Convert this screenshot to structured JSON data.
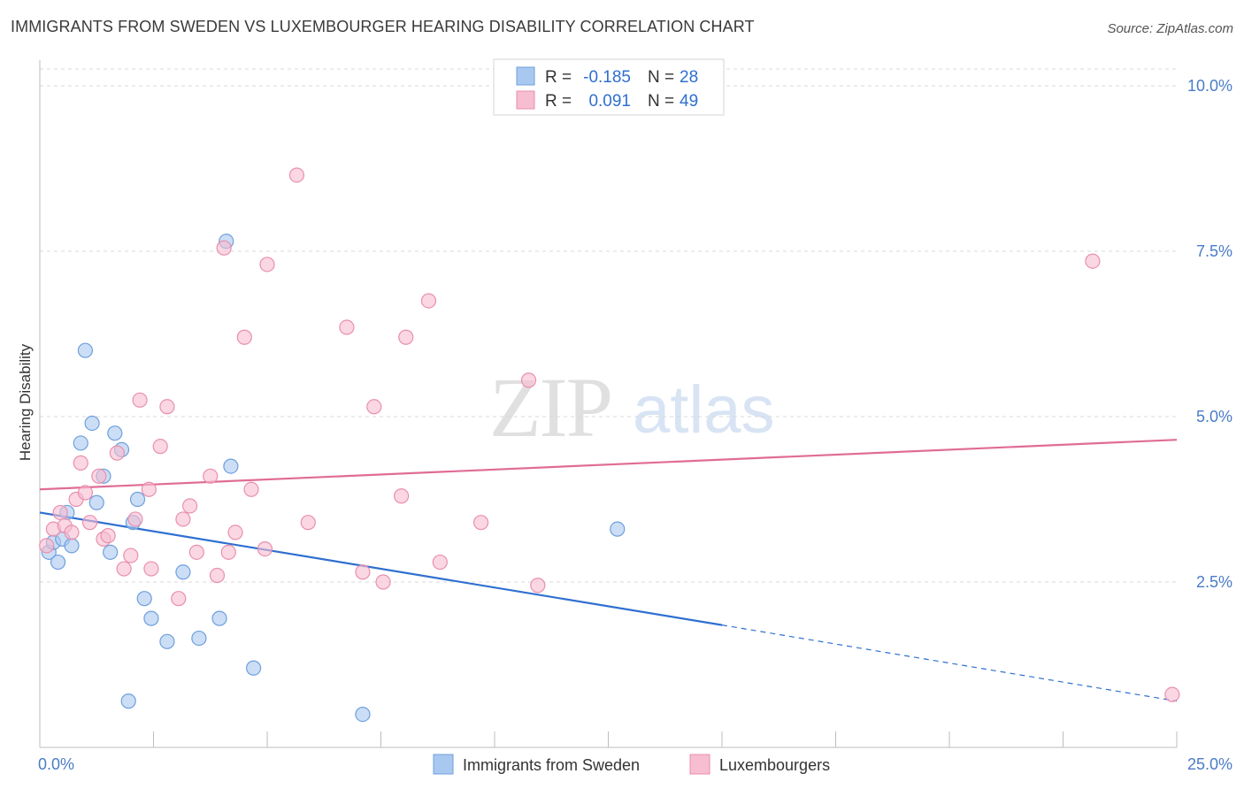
{
  "header": {
    "title": "IMMIGRANTS FROM SWEDEN VS LUXEMBOURGER HEARING DISABILITY CORRELATION CHART",
    "source": "Source: ZipAtlas.com"
  },
  "watermark": {
    "zip": "ZIP",
    "atlas": "atlas"
  },
  "chart_data": {
    "type": "scatter",
    "title": "IMMIGRANTS FROM SWEDEN VS LUXEMBOURGER HEARING DISABILITY CORRELATION CHART",
    "xlabel": "",
    "ylabel": "Hearing Disability",
    "xlim": [
      0,
      25
    ],
    "ylim": [
      0,
      10.5
    ],
    "x_tick_labels": [
      {
        "value": 0,
        "label": "0.0%"
      },
      {
        "value": 25,
        "label": "25.0%"
      }
    ],
    "y_tick_labels": [
      {
        "value": 2.5,
        "label": "2.5%"
      },
      {
        "value": 5.0,
        "label": "5.0%"
      },
      {
        "value": 7.5,
        "label": "7.5%"
      },
      {
        "value": 10.0,
        "label": "10.0%"
      }
    ],
    "x_minor_ticks": [
      2.5,
      5,
      7.5,
      10,
      12.5,
      15,
      17.5,
      20,
      22.5,
      25
    ],
    "stats_legend": [
      {
        "r_label": "R =",
        "r_value": "-0.185",
        "n_label": "N =",
        "n_value": "28",
        "color": "#a9c8f0",
        "stroke": "#6f9fdc"
      },
      {
        "r_label": "R =",
        "r_value": "0.091",
        "n_label": "N =",
        "n_value": "49",
        "color": "#f7bdd0",
        "stroke": "#e98fae"
      }
    ],
    "series": [
      {
        "name": "Immigrants from Sweden",
        "fill": "#a9c8f0",
        "stroke": "#6f9fdc",
        "line_color": "#2f6fd0",
        "trend": {
          "x0": 0,
          "y0": 3.55,
          "x1": 15,
          "y1": 1.85,
          "dash_to_x": 25,
          "dash_to_y": 0.7
        },
        "points": [
          [
            0.2,
            2.95
          ],
          [
            0.3,
            3.1
          ],
          [
            0.4,
            2.8
          ],
          [
            0.5,
            3.15
          ],
          [
            0.6,
            3.55
          ],
          [
            0.7,
            3.05
          ],
          [
            0.9,
            4.6
          ],
          [
            1.0,
            6.0
          ],
          [
            1.15,
            4.9
          ],
          [
            1.25,
            3.7
          ],
          [
            1.4,
            4.1
          ],
          [
            1.55,
            2.95
          ],
          [
            1.65,
            4.75
          ],
          [
            1.8,
            4.5
          ],
          [
            1.95,
            0.7
          ],
          [
            2.05,
            3.4
          ],
          [
            2.15,
            3.75
          ],
          [
            2.3,
            2.25
          ],
          [
            2.45,
            1.95
          ],
          [
            2.8,
            1.6
          ],
          [
            3.15,
            2.65
          ],
          [
            3.5,
            1.65
          ],
          [
            3.95,
            1.95
          ],
          [
            4.1,
            7.65
          ],
          [
            4.2,
            4.25
          ],
          [
            4.7,
            1.2
          ],
          [
            7.1,
            0.5
          ],
          [
            12.7,
            3.3
          ]
        ]
      },
      {
        "name": "Luxembourgers",
        "fill": "#f7bdd0",
        "stroke": "#e98fae",
        "line_color": "#e06c96",
        "trend": {
          "x0": 0,
          "y0": 3.9,
          "x1": 25,
          "y1": 4.65
        },
        "points": [
          [
            0.15,
            3.05
          ],
          [
            0.3,
            3.3
          ],
          [
            0.45,
            3.55
          ],
          [
            0.55,
            3.35
          ],
          [
            0.7,
            3.25
          ],
          [
            0.8,
            3.75
          ],
          [
            0.9,
            4.3
          ],
          [
            1.0,
            3.85
          ],
          [
            1.1,
            3.4
          ],
          [
            1.3,
            4.1
          ],
          [
            1.4,
            3.15
          ],
          [
            1.5,
            3.2
          ],
          [
            1.7,
            4.45
          ],
          [
            1.85,
            2.7
          ],
          [
            2.0,
            2.9
          ],
          [
            2.1,
            3.45
          ],
          [
            2.2,
            5.25
          ],
          [
            2.4,
            3.9
          ],
          [
            2.45,
            2.7
          ],
          [
            2.65,
            4.55
          ],
          [
            2.8,
            5.15
          ],
          [
            3.05,
            2.25
          ],
          [
            3.15,
            3.45
          ],
          [
            3.3,
            3.65
          ],
          [
            3.45,
            2.95
          ],
          [
            3.75,
            4.1
          ],
          [
            3.9,
            2.6
          ],
          [
            4.05,
            7.55
          ],
          [
            4.15,
            2.95
          ],
          [
            4.3,
            3.25
          ],
          [
            4.5,
            6.2
          ],
          [
            4.65,
            3.9
          ],
          [
            4.95,
            3.0
          ],
          [
            5.0,
            7.3
          ],
          [
            5.65,
            8.65
          ],
          [
            5.9,
            3.4
          ],
          [
            6.75,
            6.35
          ],
          [
            7.1,
            2.65
          ],
          [
            7.35,
            5.15
          ],
          [
            7.55,
            2.5
          ],
          [
            7.95,
            3.8
          ],
          [
            8.05,
            6.2
          ],
          [
            8.55,
            6.75
          ],
          [
            8.8,
            2.8
          ],
          [
            9.7,
            3.4
          ],
          [
            10.75,
            5.55
          ],
          [
            10.95,
            2.45
          ],
          [
            23.15,
            7.35
          ],
          [
            24.9,
            0.8
          ]
        ]
      }
    ]
  }
}
